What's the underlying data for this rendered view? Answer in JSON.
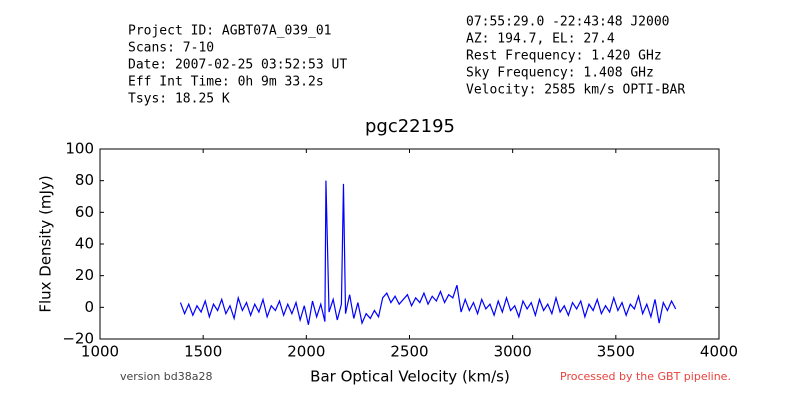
{
  "chart_data": {
    "type": "line",
    "info_left": [
      "Project ID: AGBT07A_039_01",
      "Scans: 7-10",
      "Date: 2007-02-25 03:52:53 UT",
      "Eff Int Time: 0h 9m 33.2s",
      "Tsys: 18.25 K"
    ],
    "info_right": [
      "07:55:29.0 -22:43:48 J2000",
      "AZ: 194.7, EL: 27.4",
      "Rest Frequency:   1.420 GHz",
      "Sky Frequency:    1.408 GHz",
      "Velocity: 2585 km/s OPTI-BAR"
    ],
    "title": "pgc22195",
    "x_label": "Bar Optical Velocity (km/s)",
    "y_label": "Flux Density (mJy)",
    "footer_left": "version bd38a28",
    "footer_right": "Processed by the GBT pipeline.",
    "xlim": [
      1000,
      4000
    ],
    "ylim": [
      -20,
      100
    ],
    "xticks": [
      1000,
      1500,
      2000,
      2500,
      3000,
      3500,
      4000
    ],
    "yticks": [
      {
        "value": -20,
        "label": "−20"
      },
      0,
      20,
      40,
      60,
      80,
      100
    ],
    "grid": false,
    "series": [
      {
        "color": "#0000ff",
        "x": [
          1390,
          1410,
          1430,
          1450,
          1470,
          1490,
          1510,
          1530,
          1550,
          1570,
          1590,
          1610,
          1630,
          1650,
          1670,
          1690,
          1710,
          1730,
          1750,
          1770,
          1790,
          1810,
          1830,
          1850,
          1870,
          1890,
          1910,
          1930,
          1950,
          1970,
          1990,
          2010,
          2030,
          2050,
          2070,
          2090,
          2095,
          2110,
          2130,
          2150,
          2170,
          2180,
          2190,
          2210,
          2230,
          2250,
          2270,
          2290,
          2310,
          2330,
          2350,
          2370,
          2390,
          2410,
          2430,
          2450,
          2470,
          2490,
          2510,
          2530,
          2550,
          2570,
          2590,
          2610,
          2630,
          2650,
          2670,
          2690,
          2710,
          2730,
          2750,
          2770,
          2790,
          2810,
          2830,
          2850,
          2870,
          2890,
          2910,
          2930,
          2950,
          2970,
          2990,
          3010,
          3030,
          3050,
          3070,
          3090,
          3110,
          3130,
          3150,
          3170,
          3190,
          3210,
          3230,
          3250,
          3270,
          3290,
          3310,
          3330,
          3350,
          3370,
          3390,
          3410,
          3430,
          3450,
          3470,
          3490,
          3510,
          3530,
          3550,
          3570,
          3590,
          3610,
          3630,
          3650,
          3670,
          3690,
          3710,
          3730,
          3750,
          3770,
          3790
        ],
        "values": [
          3,
          -4,
          2,
          -5,
          1,
          -3,
          4,
          -6,
          2,
          -2,
          5,
          -4,
          1,
          -7,
          6,
          -2,
          3,
          -5,
          2,
          -3,
          5,
          -6,
          1,
          -2,
          4,
          -5,
          2,
          -4,
          3,
          -8,
          1,
          -11,
          4,
          -6,
          2,
          -9,
          80,
          -3,
          5,
          -8,
          2,
          78,
          -4,
          8,
          -7,
          3,
          -10,
          -4,
          -7,
          -2,
          -6,
          6,
          9,
          3,
          7,
          2,
          5,
          8,
          1,
          6,
          3,
          9,
          2,
          7,
          4,
          10,
          3,
          8,
          6,
          14,
          -3,
          5,
          -2,
          3,
          -4,
          5,
          -1,
          2,
          -5,
          4,
          -3,
          6,
          -2,
          1,
          -6,
          4,
          -1,
          3,
          -5,
          5,
          -2,
          2,
          -4,
          6,
          -3,
          1,
          -5,
          3,
          -1,
          4,
          -6,
          2,
          -2,
          5,
          -4,
          1,
          -3,
          6,
          -2,
          3,
          -5,
          2,
          -1,
          7,
          -4,
          2,
          -6,
          5,
          -10,
          3,
          -2,
          4,
          -1
        ]
      }
    ]
  }
}
